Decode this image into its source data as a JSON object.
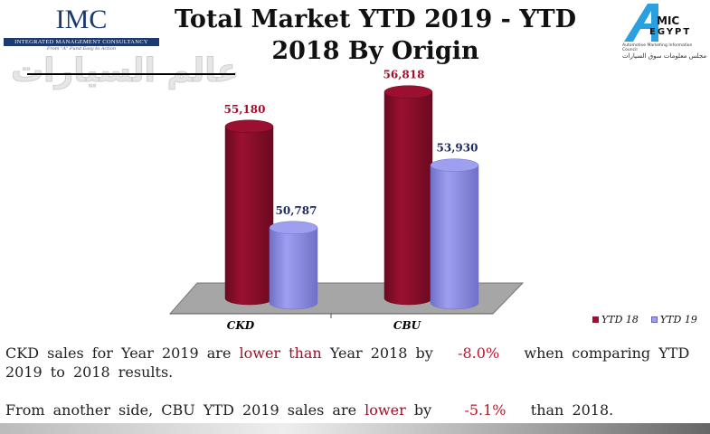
{
  "header": {
    "title_line1": "Total Market YTD 2019 - YTD",
    "title_line2": "2018 By Origin",
    "left_logo": {
      "name": "IMC",
      "subtitle": "INTEGRATED MANAGEMENT CONSULTANCY",
      "tagline": "From \"A\" Fund Easy to Action"
    },
    "watermark": "عالم السيارات",
    "right_logo": {
      "name": "AMIC EGYPT",
      "subtitle": "Automotive Marketing Information Council",
      "arabic": "مجلس معلومات سوق السيارات"
    }
  },
  "chart_data": {
    "type": "bar",
    "style": "3d-cylinder",
    "categories": [
      "CKD",
      "CBU"
    ],
    "series": [
      {
        "name": "YTD 18",
        "color": "#9b1030",
        "values": [
          55180,
          56818
        ],
        "labels": [
          "55,180",
          "56,818"
        ]
      },
      {
        "name": "YTD 19",
        "color": "#9f9ff0",
        "values": [
          50787,
          53930
        ],
        "labels": [
          "50,787",
          "53,930"
        ]
      }
    ],
    "ylim": [
      47000,
      57000
    ],
    "legend": "bottom-right",
    "grid": false
  },
  "commentary": {
    "p1": {
      "a": "CKD sales for Year 2019 are",
      "b": "lower than",
      "c": "Year 2018 by",
      "d": "-8.0%",
      "e": "when comparing YTD 2019 to 2018 results."
    },
    "p2": {
      "a": "From another side, CBU YTD 2019 sales are",
      "b": "lower",
      "c": "by",
      "d": "-5.1%",
      "e": "than 2018."
    }
  }
}
